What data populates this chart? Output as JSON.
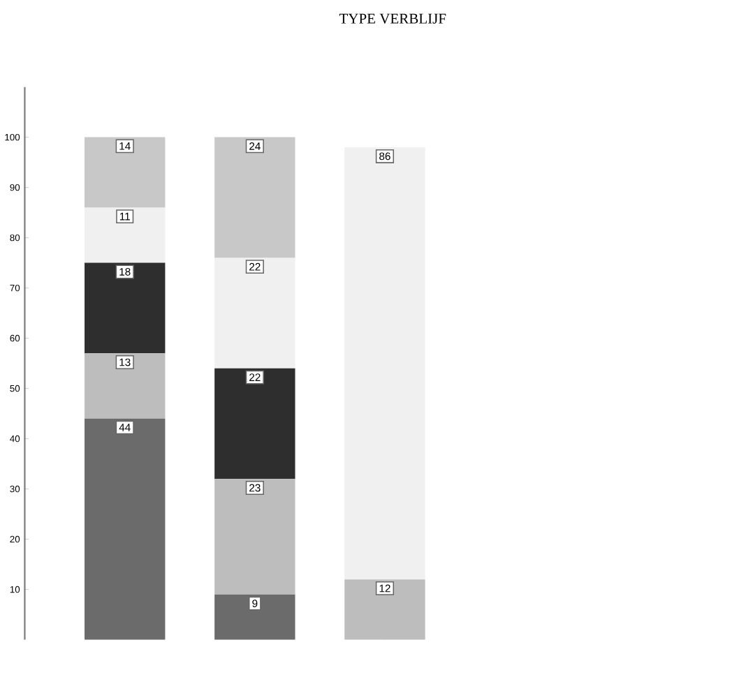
{
  "chart_data": {
    "type": "bar",
    "title": "TYPE VERBLIJF",
    "stacked": true,
    "data_labels": true,
    "categories": [
      null,
      null,
      null
    ],
    "series": [
      {
        "color": "#6b6b6b",
        "values": [
          44,
          9,
          null
        ]
      },
      {
        "color": "#bdbdbd",
        "values": [
          13,
          23,
          12
        ]
      },
      {
        "color": "#2e2e2e",
        "values": [
          18,
          22,
          null
        ]
      },
      {
        "color": "#f0f0f0",
        "values": [
          11,
          22,
          86
        ]
      },
      {
        "color": "#c8c8c8",
        "values": [
          14,
          24,
          null
        ]
      }
    ],
    "ylim": [
      0,
      110
    ],
    "yticks": [
      10,
      20,
      30,
      40,
      50,
      60,
      70,
      80,
      90,
      100
    ]
  }
}
